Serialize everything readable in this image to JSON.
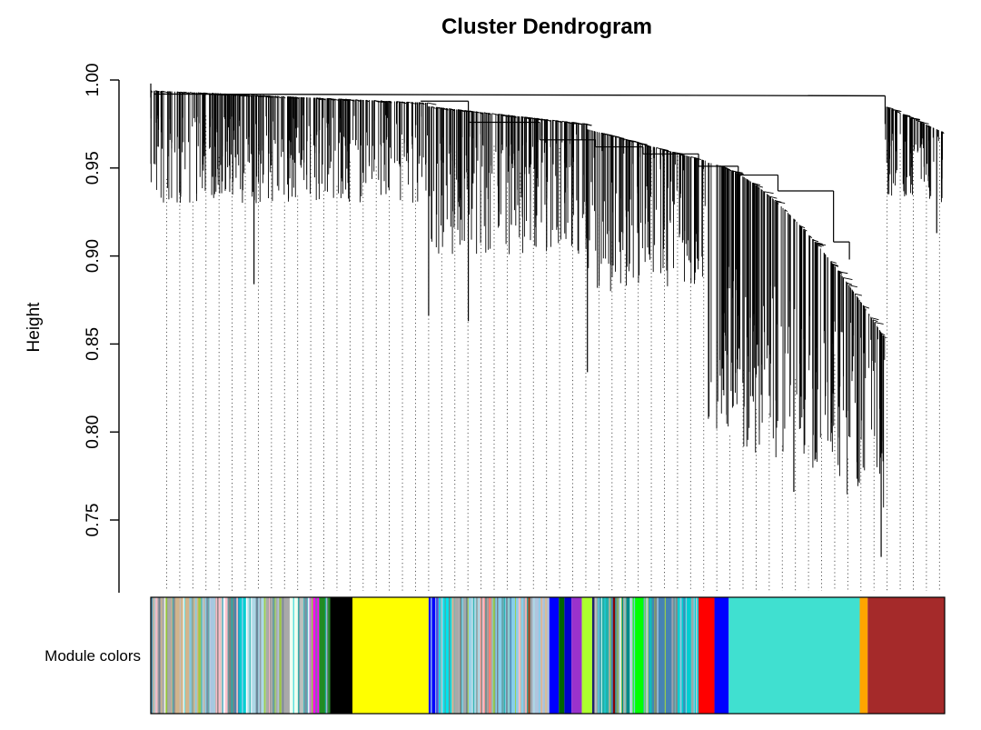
{
  "chart_data": {
    "type": "dendrogram",
    "title": "Cluster Dendrogram",
    "ylabel": "Height",
    "xlabel": "",
    "ylim": [
      0.71,
      1.0
    ],
    "yticks": [
      "0.75",
      "0.80",
      "0.85",
      "0.90",
      "0.95",
      "1.00"
    ],
    "yticks_values": [
      0.75,
      0.8,
      0.85,
      0.9,
      0.95,
      1.0
    ],
    "grid": false,
    "color_band_label": "Module colors",
    "root_merge_height": 0.991,
    "left_cluster_merge_height": 0.989,
    "main_branch_merges": [
      {
        "x": 0.34,
        "height": 0.988
      },
      {
        "x": 0.4,
        "height": 0.976
      },
      {
        "x": 0.49,
        "height": 0.966
      },
      {
        "x": 0.56,
        "height": 0.962
      },
      {
        "x": 0.62,
        "height": 0.958
      },
      {
        "x": 0.69,
        "height": 0.951
      },
      {
        "x": 0.74,
        "height": 0.946
      },
      {
        "x": 0.79,
        "height": 0.937
      },
      {
        "x": 0.86,
        "height": 0.908
      },
      {
        "x": 0.88,
        "height": 0.898
      }
    ],
    "deepest_leaf_heights": [
      {
        "x": 0.13,
        "height": 0.884
      },
      {
        "x": 0.35,
        "height": 0.866
      },
      {
        "x": 0.4,
        "height": 0.863
      },
      {
        "x": 0.55,
        "height": 0.834
      },
      {
        "x": 0.72,
        "height": 0.836
      },
      {
        "x": 0.81,
        "height": 0.766
      },
      {
        "x": 0.92,
        "height": 0.729
      },
      {
        "x": 0.99,
        "height": 0.913
      }
    ],
    "module_colors": [
      {
        "color": "#a9a9a9",
        "start": 0.0,
        "end": 0.03
      },
      {
        "color": "#d2b48c",
        "start": 0.03,
        "end": 0.065
      },
      {
        "color": "#87ceeb",
        "start": 0.065,
        "end": 0.078
      },
      {
        "color": "#ffc0cb",
        "start": 0.078,
        "end": 0.097
      },
      {
        "color": "#808080",
        "start": 0.097,
        "end": 0.108
      },
      {
        "color": "#00ced1",
        "start": 0.108,
        "end": 0.12
      },
      {
        "color": "#ffffff",
        "start": 0.12,
        "end": 0.128
      },
      {
        "color": "#add8e6",
        "start": 0.128,
        "end": 0.145
      },
      {
        "color": "#a9a9a9",
        "start": 0.145,
        "end": 0.175
      },
      {
        "color": "#f0fff0",
        "start": 0.175,
        "end": 0.196
      },
      {
        "color": "#ff00ff",
        "start": 0.196,
        "end": 0.212
      },
      {
        "color": "#228b22",
        "start": 0.212,
        "end": 0.226
      },
      {
        "color": "#000000",
        "start": 0.226,
        "end": 0.254
      },
      {
        "color": "#ffff00",
        "start": 0.254,
        "end": 0.35
      },
      {
        "color": "#0000ff",
        "start": 0.35,
        "end": 0.363
      },
      {
        "color": "#00e5ee",
        "start": 0.363,
        "end": 0.381
      },
      {
        "color": "#a9a9a9",
        "start": 0.381,
        "end": 0.4
      },
      {
        "color": "#add8e6",
        "start": 0.4,
        "end": 0.415
      },
      {
        "color": "#fa8072",
        "start": 0.415,
        "end": 0.43
      },
      {
        "color": "#87ceeb",
        "start": 0.43,
        "end": 0.47
      },
      {
        "color": "#a0522d",
        "start": 0.47,
        "end": 0.48
      },
      {
        "color": "#b0c4de",
        "start": 0.48,
        "end": 0.502
      },
      {
        "color": "#0000ff",
        "start": 0.502,
        "end": 0.514
      },
      {
        "color": "#006400",
        "start": 0.514,
        "end": 0.521
      },
      {
        "color": "#0000cd",
        "start": 0.521,
        "end": 0.53
      },
      {
        "color": "#9932cc",
        "start": 0.53,
        "end": 0.543
      },
      {
        "color": "#adff2f",
        "start": 0.543,
        "end": 0.556
      },
      {
        "color": "#191970",
        "start": 0.556,
        "end": 0.562
      },
      {
        "color": "#20b2aa",
        "start": 0.562,
        "end": 0.581
      },
      {
        "color": "#8b0000",
        "start": 0.581,
        "end": 0.589
      },
      {
        "color": "#008b8b",
        "start": 0.589,
        "end": 0.605
      },
      {
        "color": "#00ff00",
        "start": 0.605,
        "end": 0.627
      },
      {
        "color": "#4682b4",
        "start": 0.627,
        "end": 0.66
      },
      {
        "color": "#00ced1",
        "start": 0.66,
        "end": 0.69
      },
      {
        "color": "#ff0000",
        "start": 0.69,
        "end": 0.71
      },
      {
        "color": "#0000ff",
        "start": 0.71,
        "end": 0.728
      },
      {
        "color": "#40e0d0",
        "start": 0.728,
        "end": 0.893
      },
      {
        "color": "#ffa500",
        "start": 0.893,
        "end": 0.903
      },
      {
        "color": "#a52a2a",
        "start": 0.903,
        "end": 1.0
      }
    ]
  }
}
